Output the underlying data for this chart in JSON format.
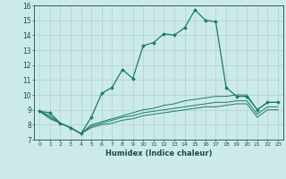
{
  "xlabel": "Humidex (Indice chaleur)",
  "bg_color": "#cdeaea",
  "line_color": "#1a7a6a",
  "grid_color": "#b0d0d0",
  "xlim": [
    -0.5,
    23.5
  ],
  "ylim": [
    7,
    16
  ],
  "xticks": [
    0,
    1,
    2,
    3,
    4,
    5,
    6,
    7,
    8,
    9,
    10,
    11,
    12,
    13,
    14,
    15,
    16,
    17,
    18,
    19,
    20,
    21,
    22,
    23
  ],
  "yticks": [
    7,
    8,
    9,
    10,
    11,
    12,
    13,
    14,
    15,
    16
  ],
  "series1_x": [
    0,
    1,
    2,
    3,
    4,
    5,
    6,
    7,
    8,
    9,
    10,
    11,
    12,
    13,
    14,
    15,
    16,
    17,
    18,
    19,
    20,
    21,
    22,
    23
  ],
  "series1_y": [
    8.9,
    8.8,
    8.1,
    7.8,
    7.4,
    8.5,
    10.1,
    10.5,
    11.7,
    11.1,
    13.3,
    13.5,
    14.1,
    14.0,
    14.5,
    15.7,
    15.0,
    14.9,
    10.5,
    9.9,
    9.9,
    9.0,
    9.5,
    9.5
  ],
  "series2_x": [
    0,
    1,
    2,
    3,
    4,
    5,
    6,
    7,
    8,
    9,
    10,
    11,
    12,
    13,
    14,
    15,
    16,
    17,
    18,
    19,
    20,
    21,
    22,
    23
  ],
  "series2_y": [
    8.9,
    8.6,
    8.1,
    7.8,
    7.4,
    8.0,
    8.2,
    8.4,
    8.6,
    8.8,
    9.0,
    9.1,
    9.3,
    9.4,
    9.6,
    9.7,
    9.8,
    9.9,
    9.9,
    10.0,
    10.0,
    9.0,
    9.5,
    9.5
  ],
  "series3_x": [
    0,
    1,
    2,
    3,
    4,
    5,
    6,
    7,
    8,
    9,
    10,
    11,
    12,
    13,
    14,
    15,
    16,
    17,
    18,
    19,
    20,
    21,
    22,
    23
  ],
  "series3_y": [
    8.9,
    8.5,
    8.1,
    7.8,
    7.4,
    7.9,
    8.1,
    8.3,
    8.5,
    8.6,
    8.8,
    8.9,
    9.0,
    9.1,
    9.2,
    9.3,
    9.4,
    9.5,
    9.5,
    9.6,
    9.6,
    8.7,
    9.2,
    9.2
  ],
  "series4_x": [
    0,
    1,
    2,
    3,
    4,
    5,
    6,
    7,
    8,
    9,
    10,
    11,
    12,
    13,
    14,
    15,
    16,
    17,
    18,
    19,
    20,
    21,
    22,
    23
  ],
  "series4_y": [
    8.9,
    8.4,
    8.1,
    7.8,
    7.4,
    7.8,
    8.0,
    8.1,
    8.3,
    8.4,
    8.6,
    8.7,
    8.8,
    8.9,
    9.0,
    9.1,
    9.2,
    9.2,
    9.3,
    9.4,
    9.4,
    8.5,
    9.0,
    9.0
  ]
}
